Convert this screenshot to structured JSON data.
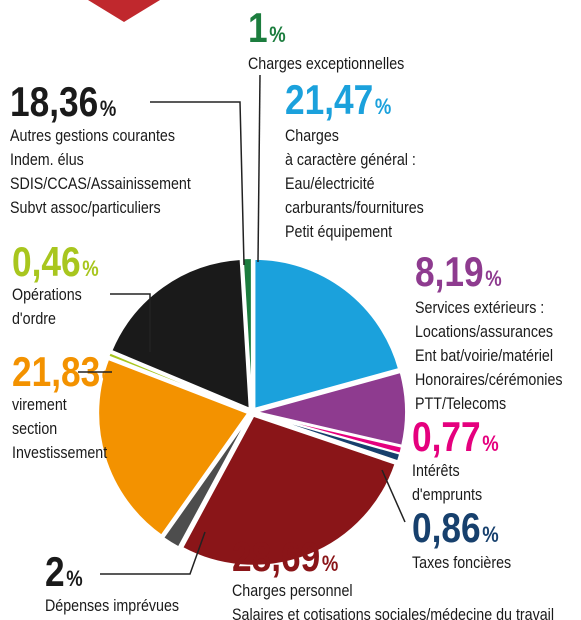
{
  "chart_data": {
    "type": "pie",
    "unit": "%",
    "values": [
      21.47,
      8.19,
      0.77,
      0.86,
      28.69,
      2,
      21.83,
      0.46,
      18.36,
      1
    ],
    "value_labels": [
      "21,47",
      "8,19",
      "0,77",
      "0,86",
      "28,69",
      "2",
      "21,83",
      "0,46",
      "18,36",
      "1"
    ],
    "colors": [
      "#1ba1dc",
      "#8e3b8f",
      "#e5007e",
      "#17406d",
      "#8a1518",
      "#4d4d4d",
      "#f39200",
      "#a8c61e",
      "#1a1a1a",
      "#1c7d3e"
    ],
    "descriptions": [
      [
        "Charges",
        "à caractère général :",
        "Eau/électricité",
        "carburants/fournitures",
        "Petit équipement"
      ],
      [
        "Services extérieurs :",
        "Locations/assurances",
        "Ent bat/voirie/matériel",
        "Honoraires/cérémonies",
        "PTT/Telecoms"
      ],
      [
        "Intérêts",
        "d'emprunts"
      ],
      [
        "Taxes foncières"
      ],
      [
        "Charges personnel",
        "Salaires et cotisations sociales/médecine du travail"
      ],
      [
        "Dépenses imprévues"
      ],
      [
        "virement",
        "section",
        "Investissement"
      ],
      [
        "Opérations",
        "d'ordre"
      ],
      [
        "Autres gestions courantes",
        "Indem. élus",
        "SDIS/CCAS/Assainissement",
        "Subvt assoc/particuliers"
      ],
      [
        "Charges exceptionnelles"
      ]
    ]
  }
}
